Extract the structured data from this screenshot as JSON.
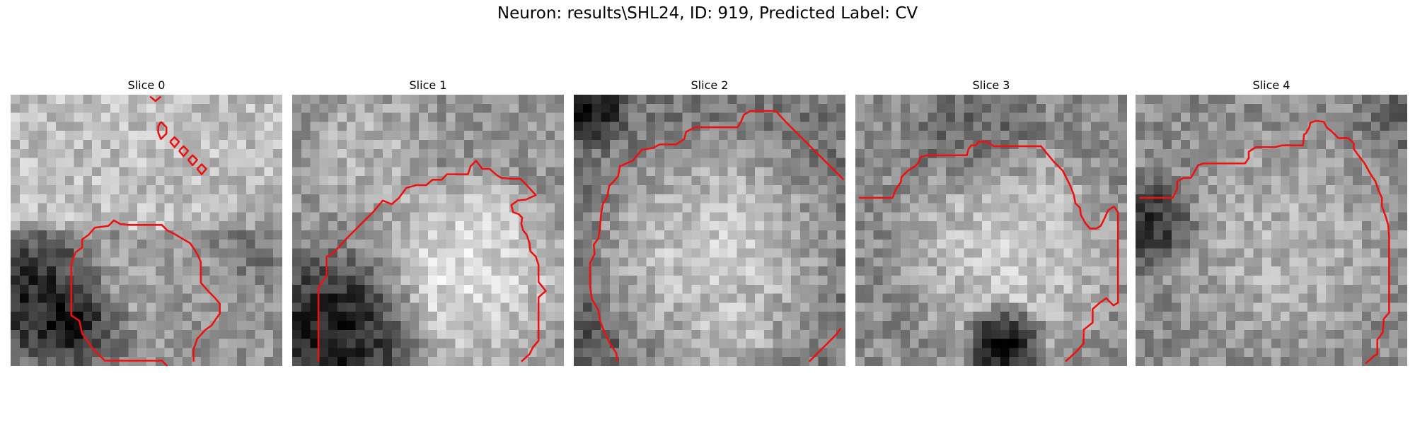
{
  "figure": {
    "title": "Neuron: results\\SHL24, ID: 919, Predicted Label: CV"
  },
  "style": {
    "contour_color": "#ee1111"
  },
  "panels": [
    {
      "title": "Slice 0",
      "image_description": "30x30 grayscale patch; light textured area upper region, dark band on lower-left, round mid-gray cell body bottom-center",
      "contours": [
        [
          [
            15.4,
            0.2
          ],
          [
            16.0,
            0.7
          ],
          [
            16.6,
            0.2
          ]
        ],
        [
          [
            16.6,
            3.0
          ],
          [
            17.2,
            3.6
          ],
          [
            17.2,
            4.3
          ],
          [
            16.6,
            4.9
          ],
          [
            16.3,
            4.2
          ],
          [
            16.3,
            3.5
          ],
          [
            16.6,
            3.0
          ]
        ],
        [
          [
            17.6,
            5.2
          ],
          [
            18.1,
            5.8
          ],
          [
            18.6,
            5.2
          ],
          [
            18.1,
            4.7
          ],
          [
            17.6,
            5.2
          ]
        ],
        [
          [
            18.6,
            6.2
          ],
          [
            19.1,
            6.8
          ],
          [
            19.6,
            6.2
          ],
          [
            19.1,
            5.7
          ],
          [
            18.6,
            6.2
          ]
        ],
        [
          [
            19.6,
            7.2
          ],
          [
            20.1,
            7.8
          ],
          [
            20.6,
            7.2
          ],
          [
            20.1,
            6.7
          ],
          [
            19.6,
            7.2
          ]
        ],
        [
          [
            20.6,
            8.2
          ],
          [
            21.1,
            8.8
          ],
          [
            21.6,
            8.2
          ],
          [
            21.1,
            7.7
          ],
          [
            20.6,
            8.2
          ]
        ],
        [
          [
            17.3,
            30
          ],
          [
            16.7,
            29.4
          ],
          [
            10.4,
            29.4
          ],
          [
            9.1,
            28.1
          ],
          [
            7.9,
            26.4
          ],
          [
            7.6,
            25.0
          ],
          [
            6.7,
            24.4
          ],
          [
            6.7,
            18.7
          ],
          [
            6.9,
            18.1
          ],
          [
            7.2,
            17.4
          ],
          [
            7.9,
            16.9
          ],
          [
            7.9,
            16.0
          ],
          [
            8.6,
            15.5
          ],
          [
            9.3,
            14.7
          ],
          [
            10.1,
            14.6
          ],
          [
            10.8,
            14.5
          ],
          [
            11.4,
            13.9
          ],
          [
            12.1,
            14.3
          ],
          [
            13.1,
            14.4
          ],
          [
            14.1,
            14.4
          ],
          [
            16.7,
            14.4
          ],
          [
            17.3,
            15.0
          ],
          [
            18.1,
            15.4
          ],
          [
            19.1,
            16.0
          ],
          [
            19.8,
            16.4
          ],
          [
            20.3,
            17.1
          ],
          [
            20.7,
            17.8
          ],
          [
            21.0,
            18.5
          ],
          [
            21.0,
            20.8
          ],
          [
            21.9,
            21.8
          ],
          [
            22.5,
            22.4
          ],
          [
            23.1,
            23.1
          ],
          [
            23.1,
            24.2
          ],
          [
            22.6,
            24.9
          ],
          [
            22.2,
            25.5
          ],
          [
            21.5,
            26.0
          ],
          [
            20.6,
            27.0
          ],
          [
            20.2,
            28.2
          ],
          [
            20.2,
            29.5
          ]
        ]
      ]
    },
    {
      "title": "Slice 1",
      "image_description": "30x30 grayscale patch; dark region lower-left, bright round cell body center-right",
      "contours": [
        [
          [
            2.9,
            29.5
          ],
          [
            2.9,
            21.3
          ],
          [
            3.8,
            20.0
          ],
          [
            3.8,
            17.9
          ],
          [
            4.4,
            17.6
          ],
          [
            5.1,
            16.9
          ],
          [
            6.0,
            15.9
          ],
          [
            7.0,
            14.9
          ],
          [
            8.0,
            13.9
          ],
          [
            9.0,
            12.9
          ],
          [
            10.0,
            11.7
          ],
          [
            11.0,
            12.1
          ],
          [
            11.8,
            11.4
          ],
          [
            12.6,
            10.3
          ],
          [
            13.7,
            10.0
          ],
          [
            14.8,
            10.0
          ],
          [
            15.5,
            9.4
          ],
          [
            16.5,
            9.4
          ],
          [
            17.1,
            8.8
          ],
          [
            19.4,
            8.8
          ],
          [
            19.7,
            7.9
          ],
          [
            20.3,
            7.3
          ],
          [
            21.0,
            8.2
          ],
          [
            21.8,
            8.2
          ],
          [
            22.6,
            8.9
          ],
          [
            23.1,
            9.2
          ],
          [
            24.3,
            9.3
          ],
          [
            25.2,
            9.3
          ],
          [
            25.8,
            9.9
          ],
          [
            26.9,
            11.1
          ],
          [
            25.8,
            11.6
          ],
          [
            24.9,
            11.7
          ],
          [
            24.2,
            12.2
          ],
          [
            24.4,
            13.0
          ],
          [
            25.0,
            13.2
          ],
          [
            25.4,
            13.6
          ],
          [
            25.3,
            14.3
          ],
          [
            25.5,
            15.0
          ],
          [
            25.9,
            15.5
          ],
          [
            26.2,
            16.4
          ],
          [
            26.3,
            17.3
          ],
          [
            26.9,
            17.9
          ],
          [
            27.2,
            18.8
          ],
          [
            27.2,
            20.7
          ],
          [
            28.0,
            21.7
          ],
          [
            27.2,
            22.4
          ],
          [
            27.2,
            27.2
          ],
          [
            26.6,
            27.9
          ],
          [
            26.2,
            28.7
          ],
          [
            25.3,
            29.5
          ]
        ]
      ]
    },
    {
      "title": "Slice 2",
      "image_description": "30x30 grayscale patch; dark corner top-left, large bright round cell body filling frame",
      "contours": [
        [
          [
            4.8,
            29.5
          ],
          [
            4.7,
            28.6
          ],
          [
            4.0,
            27.5
          ],
          [
            3.4,
            26.3
          ],
          [
            2.9,
            25.0
          ],
          [
            2.7,
            23.8
          ],
          [
            2.0,
            22.6
          ],
          [
            1.8,
            21.2
          ],
          [
            1.8,
            18.6
          ],
          [
            2.3,
            17.6
          ],
          [
            2.2,
            16.6
          ],
          [
            2.7,
            15.9
          ],
          [
            2.9,
            14.7
          ],
          [
            3.0,
            13.3
          ],
          [
            3.2,
            12.1
          ],
          [
            3.7,
            11.3
          ],
          [
            3.9,
            10.1
          ],
          [
            4.4,
            9.6
          ],
          [
            4.9,
            9.0
          ],
          [
            5.1,
            7.9
          ],
          [
            6.5,
            7.3
          ],
          [
            7.5,
            6.1
          ],
          [
            8.7,
            5.9
          ],
          [
            9.5,
            5.5
          ],
          [
            11.3,
            5.5
          ],
          [
            12.2,
            4.9
          ],
          [
            12.4,
            4.1
          ],
          [
            13.4,
            3.6
          ],
          [
            18.1,
            3.6
          ],
          [
            18.5,
            2.9
          ],
          [
            18.8,
            2.2
          ],
          [
            19.5,
            1.8
          ],
          [
            22.3,
            1.8
          ],
          [
            23.4,
            3.0
          ],
          [
            24.6,
            4.2
          ],
          [
            25.8,
            5.4
          ],
          [
            27.0,
            6.6
          ],
          [
            28.2,
            7.8
          ],
          [
            29.4,
            9.0
          ],
          [
            29.8,
            9.4
          ]
        ],
        [
          [
            26.0,
            29.5
          ],
          [
            27.0,
            28.5
          ],
          [
            28.0,
            27.5
          ],
          [
            29.0,
            26.5
          ],
          [
            29.5,
            25.8
          ]
        ]
      ]
    },
    {
      "title": "Slice 3",
      "image_description": "30x30 grayscale patch; textured mid-gray background, bright round cell body, dark spot bottom-center",
      "contours": [
        [
          [
            0.4,
            11.4
          ],
          [
            4.1,
            11.4
          ],
          [
            4.5,
            10.4
          ],
          [
            5.0,
            9.7
          ],
          [
            5.1,
            9.1
          ],
          [
            5.8,
            8.4
          ],
          [
            6.6,
            7.9
          ],
          [
            6.9,
            7.6
          ],
          [
            7.2,
            6.9
          ],
          [
            7.9,
            6.7
          ],
          [
            12.3,
            6.7
          ],
          [
            12.5,
            6.0
          ],
          [
            12.8,
            5.6
          ],
          [
            13.3,
            5.6
          ],
          [
            13.6,
            5.2
          ],
          [
            14.5,
            5.2
          ],
          [
            15.3,
            5.7
          ],
          [
            20.5,
            5.7
          ],
          [
            21.0,
            6.3
          ],
          [
            21.9,
            7.4
          ],
          [
            22.9,
            8.4
          ],
          [
            23.7,
            10.0
          ],
          [
            24.1,
            11.0
          ],
          [
            24.3,
            12.0
          ],
          [
            24.8,
            12.5
          ],
          [
            24.9,
            13.3
          ],
          [
            25.4,
            14.2
          ],
          [
            25.9,
            14.8
          ],
          [
            26.6,
            14.8
          ],
          [
            27.1,
            14.5
          ],
          [
            27.5,
            13.7
          ],
          [
            27.9,
            12.8
          ],
          [
            28.5,
            12.4
          ],
          [
            28.6,
            12.4
          ],
          [
            29.0,
            13.0
          ],
          [
            29.0,
            23.0
          ],
          [
            28.5,
            23.3
          ],
          [
            27.7,
            22.5
          ],
          [
            27.0,
            23.0
          ],
          [
            26.2,
            23.7
          ],
          [
            26.2,
            25.2
          ],
          [
            25.2,
            26.0
          ],
          [
            25.2,
            27.5
          ],
          [
            24.4,
            28.4
          ],
          [
            23.2,
            29.5
          ]
        ]
      ]
    },
    {
      "title": "Slice 4",
      "image_description": "30x30 grayscale patch; mid-gray cell body filling most of frame with darker speckle, dark left edge",
      "contours": [
        [
          [
            0.4,
            11.4
          ],
          [
            4.1,
            11.4
          ],
          [
            4.6,
            10.4
          ],
          [
            4.6,
            9.6
          ],
          [
            5.3,
            9.2
          ],
          [
            6.1,
            9.2
          ],
          [
            6.4,
            8.7
          ],
          [
            6.9,
            7.8
          ],
          [
            7.5,
            7.6
          ],
          [
            12.1,
            7.6
          ],
          [
            12.5,
            7.0
          ],
          [
            12.5,
            6.3
          ],
          [
            13.3,
            5.8
          ],
          [
            15.4,
            5.8
          ],
          [
            16.2,
            5.6
          ],
          [
            18.5,
            5.6
          ],
          [
            18.6,
            4.4
          ],
          [
            18.8,
            4.3
          ],
          [
            19.2,
            3.6
          ],
          [
            19.3,
            3.1
          ],
          [
            19.9,
            2.9
          ],
          [
            20.1,
            2.9
          ],
          [
            20.8,
            3.0
          ],
          [
            21.1,
            3.6
          ],
          [
            21.7,
            4.1
          ],
          [
            22.4,
            4.8
          ],
          [
            23.5,
            4.8
          ],
          [
            24.1,
            5.4
          ],
          [
            24.1,
            6.0
          ],
          [
            24.6,
            6.7
          ],
          [
            25.0,
            7.2
          ],
          [
            25.3,
            7.6
          ],
          [
            25.9,
            8.7
          ],
          [
            26.5,
            9.6
          ],
          [
            26.8,
            10.5
          ],
          [
            27.2,
            11.4
          ],
          [
            27.2,
            12.3
          ],
          [
            27.6,
            13.4
          ],
          [
            27.9,
            14.4
          ],
          [
            28.0,
            15.6
          ],
          [
            28.0,
            24.1
          ],
          [
            27.4,
            24.8
          ],
          [
            27.3,
            26.3
          ],
          [
            26.7,
            27.1
          ],
          [
            26.7,
            28.7
          ],
          [
            26.3,
            28.9
          ],
          [
            25.9,
            29.3
          ],
          [
            25.4,
            29.7
          ]
        ]
      ]
    }
  ]
}
